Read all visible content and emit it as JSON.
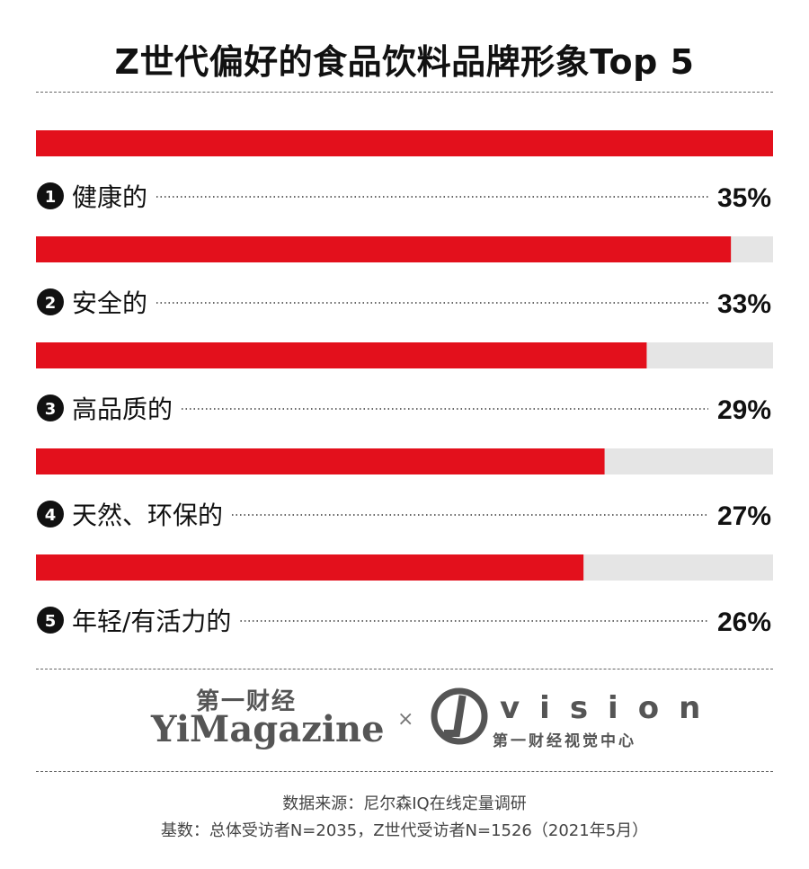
{
  "title": "Z世代偏好的食品饮料品牌形象Top 5",
  "chart_data": {
    "type": "bar",
    "title": "Z世代偏好的食品饮料品牌形象Top 5",
    "orientation": "horizontal",
    "ranks": [
      "1",
      "2",
      "3",
      "4",
      "5"
    ],
    "categories": [
      "健康的",
      "安全的",
      "高品质的",
      "天然、环保的",
      "年轻/有活力的"
    ],
    "values": [
      35,
      33,
      29,
      27,
      26
    ],
    "value_labels": [
      "35%",
      "33%",
      "29%",
      "27%",
      "26%"
    ],
    "unit": "%",
    "xlim": [
      0,
      35
    ],
    "colors": {
      "bar": "#e3101c",
      "track": "#e5e5e5"
    }
  },
  "logos": {
    "yimagazine_cn": "第一财经",
    "yimagazine_en": "YiMagazine",
    "separator": "×",
    "vision_word": "vision",
    "vision_cn": "第一财经视觉中心"
  },
  "footer": {
    "source": "数据来源：尼尔森IQ在线定量调研",
    "base": "基数：总体受访者N=2035，Z世代受访者N=1526（2021年5月）"
  }
}
